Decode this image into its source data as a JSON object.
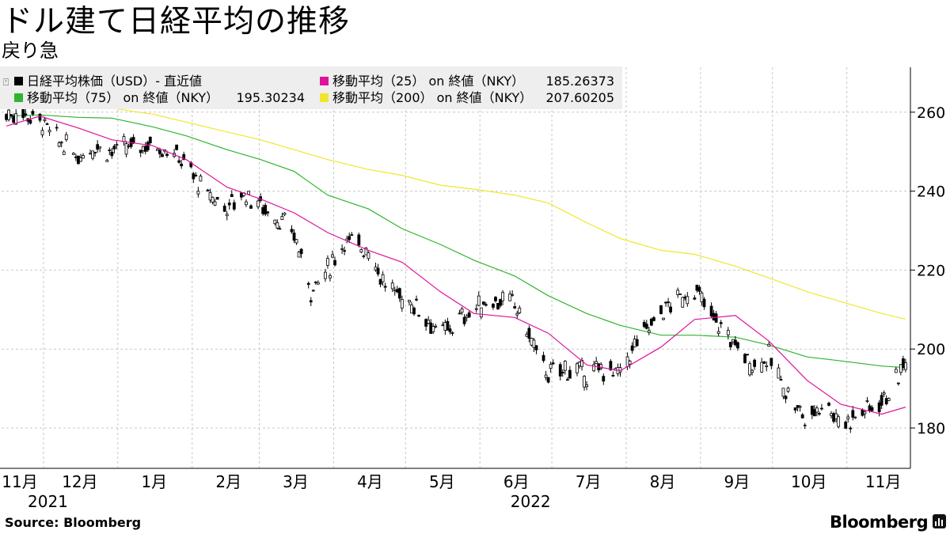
{
  "title": "ドル建て日経平均の推移",
  "subtitle": "戻り急",
  "source": "Source:  Bloomberg",
  "brand": "Bloomberg",
  "colors": {
    "price": "#000000",
    "ma25": "#e0119b",
    "ma75": "#2fb52f",
    "ma200": "#f2e62a",
    "grid": "#c8c8c8",
    "legend_bg": "#eeeeee"
  },
  "legend": [
    {
      "key": "price",
      "label": "日経平均株価（USD）- 直近値",
      "value": ""
    },
    {
      "key": "ma25",
      "label": "移動平均（25） on 終値（NKY）",
      "value": "185.26373"
    },
    {
      "key": "ma75",
      "label": "移動平均（75） on 終値（NKY）",
      "value": "195.30234"
    },
    {
      "key": "ma200",
      "label": "移動平均（200） on 終値（NKY）",
      "value": "207.60205"
    }
  ],
  "chart_data": {
    "type": "candlestick",
    "ylim": [
      170,
      270
    ],
    "yticks": [
      180,
      200,
      220,
      240,
      260
    ],
    "y_axis_side": "right",
    "grid": true,
    "legend_position": "top-left",
    "x_ticks": [
      {
        "label": "11月",
        "date": "2021-11-01"
      },
      {
        "label": "12月",
        "date": "2021-12-01"
      },
      {
        "label": "1月",
        "date": "2022-01-01"
      },
      {
        "label": "2月",
        "date": "2022-02-01"
      },
      {
        "label": "3月",
        "date": "2022-03-01"
      },
      {
        "label": "4月",
        "date": "2022-04-01"
      },
      {
        "label": "5月",
        "date": "2022-05-01"
      },
      {
        "label": "6月",
        "date": "2022-06-01"
      },
      {
        "label": "7月",
        "date": "2022-07-01"
      },
      {
        "label": "8月",
        "date": "2022-08-01"
      },
      {
        "label": "9月",
        "date": "2022-09-01"
      },
      {
        "label": "10月",
        "date": "2022-10-01"
      },
      {
        "label": "11月",
        "date": "2022-11-01"
      }
    ],
    "year_labels": [
      {
        "label": "2021",
        "date": "2021-11-15"
      },
      {
        "label": "2022",
        "date": "2022-06-01"
      }
    ],
    "series": [
      {
        "name": "日経平均株価（USD）- 直近値",
        "key": "price",
        "points": [
          [
            "2021-11-01",
            259.3
          ],
          [
            "2021-11-08",
            259.8
          ],
          [
            "2021-11-15",
            258.0
          ],
          [
            "2021-11-22",
            253.0
          ],
          [
            "2021-12-01",
            249.0
          ],
          [
            "2021-12-08",
            251.5
          ],
          [
            "2021-12-15",
            250.0
          ],
          [
            "2021-12-22",
            251.0
          ],
          [
            "2022-01-01",
            252.0
          ],
          [
            "2022-01-08",
            250.5
          ],
          [
            "2022-01-15",
            247.0
          ],
          [
            "2022-01-22",
            240.0
          ],
          [
            "2022-02-01",
            236.0
          ],
          [
            "2022-02-08",
            239.5
          ],
          [
            "2022-02-15",
            236.5
          ],
          [
            "2022-02-22",
            233.0
          ],
          [
            "2022-03-01",
            229.0
          ],
          [
            "2022-03-08",
            215.0
          ],
          [
            "2022-03-15",
            220.0
          ],
          [
            "2022-03-22",
            227.5
          ],
          [
            "2022-04-01",
            225.5
          ],
          [
            "2022-04-08",
            216.0
          ],
          [
            "2022-04-15",
            213.0
          ],
          [
            "2022-04-22",
            210.5
          ],
          [
            "2022-05-01",
            203.5
          ],
          [
            "2022-05-08",
            207.0
          ],
          [
            "2022-05-15",
            210.0
          ],
          [
            "2022-05-22",
            212.5
          ],
          [
            "2022-06-01",
            211.5
          ],
          [
            "2022-06-08",
            202.0
          ],
          [
            "2022-06-15",
            193.5
          ],
          [
            "2022-06-22",
            195.0
          ],
          [
            "2022-07-01",
            193.5
          ],
          [
            "2022-07-08",
            195.0
          ],
          [
            "2022-07-15",
            193.5
          ],
          [
            "2022-07-22",
            202.0
          ],
          [
            "2022-08-01",
            209.5
          ],
          [
            "2022-08-08",
            212.5
          ],
          [
            "2022-08-15",
            215.0
          ],
          [
            "2022-08-22",
            208.5
          ],
          [
            "2022-09-01",
            201.0
          ],
          [
            "2022-09-08",
            196.0
          ],
          [
            "2022-09-15",
            198.0
          ],
          [
            "2022-09-22",
            189.5
          ],
          [
            "2022-10-01",
            181.5
          ],
          [
            "2022-10-08",
            187.5
          ],
          [
            "2022-10-15",
            181.0
          ],
          [
            "2022-10-22",
            183.5
          ],
          [
            "2022-11-01",
            187.0
          ],
          [
            "2022-11-08",
            192.5
          ],
          [
            "2022-11-11",
            197.5
          ]
        ]
      },
      {
        "name": "移動平均（25） on 終値（NKY）",
        "key": "ma25",
        "points": [
          [
            "2021-11-01",
            256.5
          ],
          [
            "2021-11-15",
            259.0
          ],
          [
            "2021-12-01",
            256.0
          ],
          [
            "2021-12-15",
            253.0
          ],
          [
            "2022-01-01",
            251.5
          ],
          [
            "2022-01-15",
            248.0
          ],
          [
            "2022-02-01",
            241.0
          ],
          [
            "2022-02-15",
            238.0
          ],
          [
            "2022-03-01",
            234.5
          ],
          [
            "2022-03-15",
            229.5
          ],
          [
            "2022-04-01",
            225.0
          ],
          [
            "2022-04-15",
            222.0
          ],
          [
            "2022-05-01",
            214.5
          ],
          [
            "2022-05-15",
            209.0
          ],
          [
            "2022-06-01",
            208.0
          ],
          [
            "2022-06-15",
            204.0
          ],
          [
            "2022-07-01",
            196.0
          ],
          [
            "2022-07-15",
            194.5
          ],
          [
            "2022-08-01",
            200.5
          ],
          [
            "2022-08-15",
            207.5
          ],
          [
            "2022-09-01",
            208.5
          ],
          [
            "2022-09-15",
            202.0
          ],
          [
            "2022-10-01",
            192.0
          ],
          [
            "2022-10-15",
            186.0
          ],
          [
            "2022-11-01",
            183.5
          ],
          [
            "2022-11-11",
            185.3
          ]
        ]
      },
      {
        "name": "移動平均（75） on 終値（NKY）",
        "key": "ma75",
        "points": [
          [
            "2021-11-01",
            259.0
          ],
          [
            "2021-11-15",
            259.3
          ],
          [
            "2021-12-01",
            258.7
          ],
          [
            "2021-12-15",
            258.5
          ],
          [
            "2022-01-01",
            256.3
          ],
          [
            "2022-01-15",
            254.0
          ],
          [
            "2022-02-01",
            250.5
          ],
          [
            "2022-02-15",
            248.0
          ],
          [
            "2022-03-01",
            245.0
          ],
          [
            "2022-03-15",
            239.0
          ],
          [
            "2022-04-01",
            235.5
          ],
          [
            "2022-04-15",
            230.5
          ],
          [
            "2022-05-01",
            226.5
          ],
          [
            "2022-05-15",
            222.5
          ],
          [
            "2022-06-01",
            218.5
          ],
          [
            "2022-06-15",
            213.5
          ],
          [
            "2022-07-01",
            209.0
          ],
          [
            "2022-07-15",
            206.0
          ],
          [
            "2022-08-01",
            203.5
          ],
          [
            "2022-08-15",
            203.5
          ],
          [
            "2022-09-01",
            203.0
          ],
          [
            "2022-09-15",
            201.0
          ],
          [
            "2022-10-01",
            198.0
          ],
          [
            "2022-10-15",
            197.0
          ],
          [
            "2022-11-01",
            195.7
          ],
          [
            "2022-11-11",
            195.3
          ]
        ]
      },
      {
        "name": "移動平均（200） on 終値（NKY）",
        "key": "ma200",
        "points": [
          [
            "2021-11-01",
            263.5
          ],
          [
            "2021-11-15",
            262.8
          ],
          [
            "2021-12-01",
            262.0
          ],
          [
            "2021-12-15",
            261.0
          ],
          [
            "2022-01-01",
            259.5
          ],
          [
            "2022-01-15",
            257.5
          ],
          [
            "2022-02-01",
            255.0
          ],
          [
            "2022-02-15",
            253.0
          ],
          [
            "2022-03-01",
            250.5
          ],
          [
            "2022-03-15",
            248.0
          ],
          [
            "2022-04-01",
            245.5
          ],
          [
            "2022-04-15",
            244.0
          ],
          [
            "2022-05-01",
            241.5
          ],
          [
            "2022-05-15",
            240.5
          ],
          [
            "2022-06-01",
            239.0
          ],
          [
            "2022-06-15",
            237.0
          ],
          [
            "2022-07-01",
            232.0
          ],
          [
            "2022-07-15",
            228.0
          ],
          [
            "2022-08-01",
            225.0
          ],
          [
            "2022-08-15",
            224.0
          ],
          [
            "2022-09-01",
            221.0
          ],
          [
            "2022-09-15",
            218.0
          ],
          [
            "2022-10-01",
            214.5
          ],
          [
            "2022-10-15",
            212.0
          ],
          [
            "2022-11-01",
            209.0
          ],
          [
            "2022-11-11",
            207.6
          ]
        ]
      }
    ]
  }
}
